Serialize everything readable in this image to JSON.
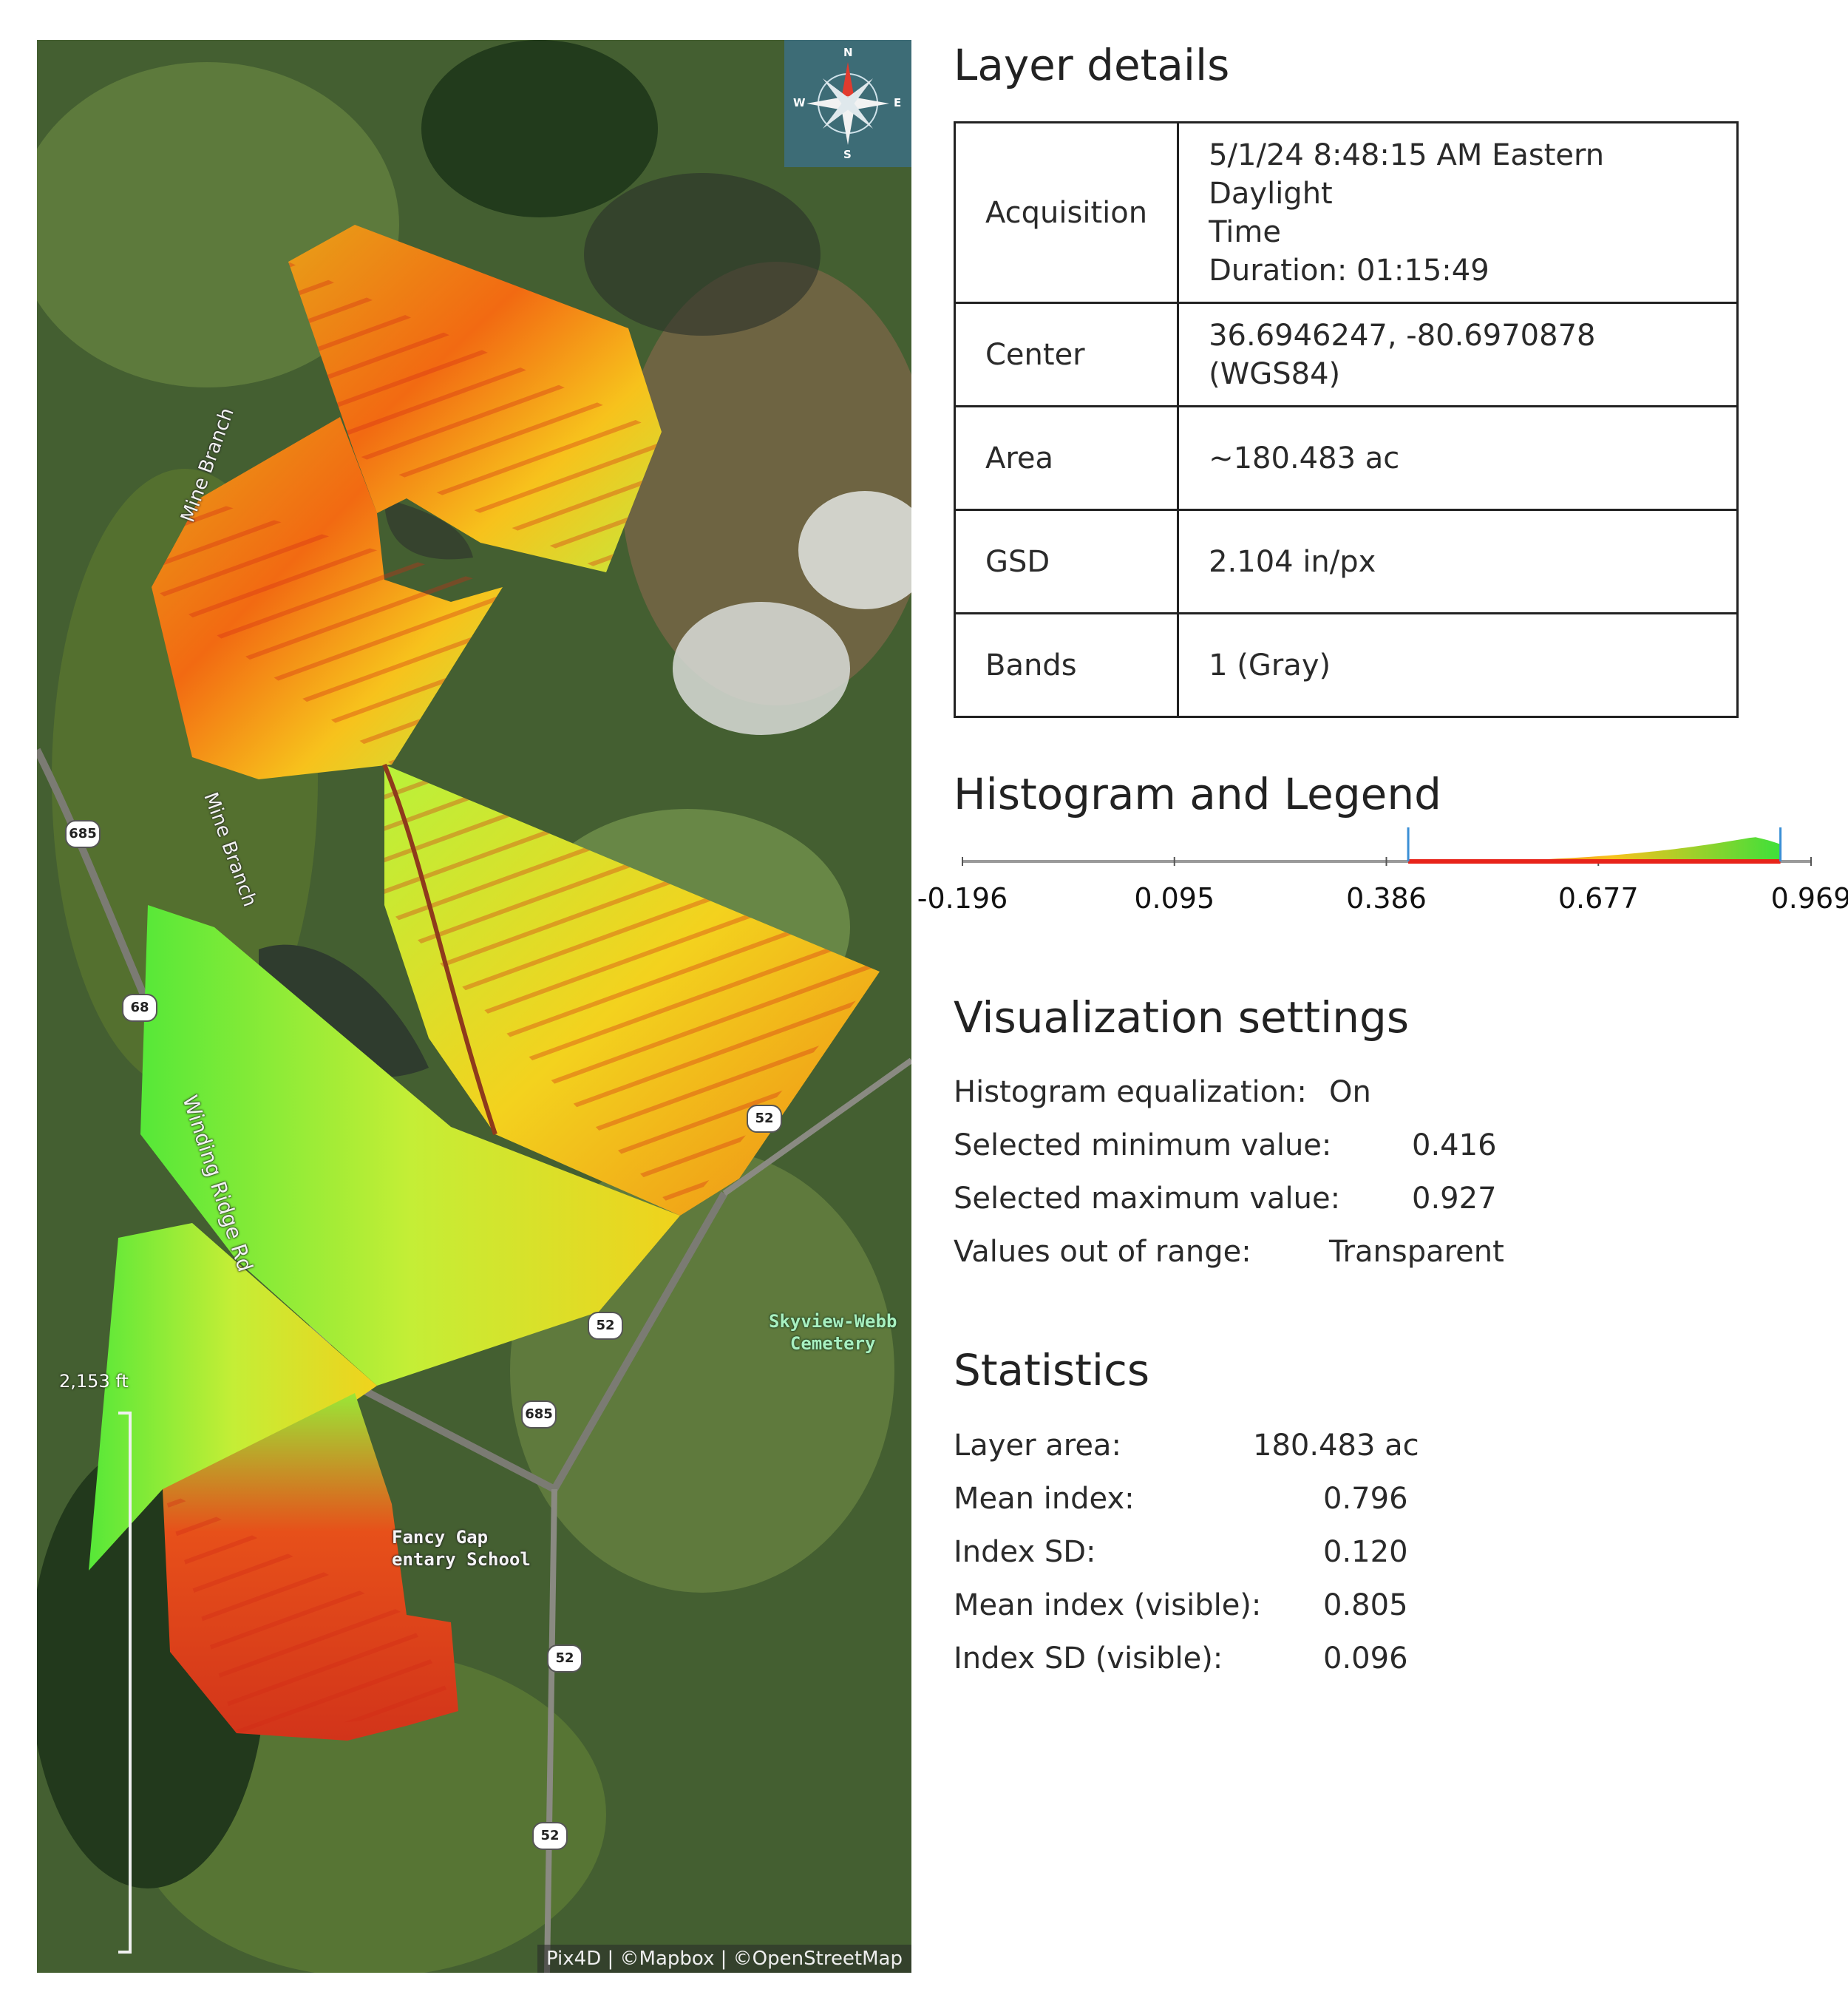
{
  "map": {
    "compass": {
      "n": "N",
      "e": "E",
      "s": "S",
      "w": "W"
    },
    "labels": {
      "mine_branch_1": "Mine Branch",
      "mine_branch_2": "Mine Branch",
      "winding_ridge": "Winding Ridge Rd",
      "skyview": "Skyview-Webb\nCemetery",
      "school": "Fancy Gap\nentary School"
    },
    "shields": {
      "r685a": "685",
      "r68": "68",
      "r52a": "52",
      "r52b": "52",
      "r685b": "685",
      "r52c": "52",
      "r52d": "52"
    },
    "scale_label": "2,153 ft",
    "attribution": "Pix4D | ©Mapbox | ©OpenStreetMap"
  },
  "layer_details": {
    "title": "Layer details",
    "rows": [
      {
        "key": "Acquisition",
        "value": "5/1/24 8:48:15 AM Eastern Daylight\nTime\nDuration: 01:15:49"
      },
      {
        "key": "Center",
        "value": "36.6946247, -80.6970878 (WGS84)"
      },
      {
        "key": "Area",
        "value": "~180.483 ac"
      },
      {
        "key": "GSD",
        "value": "2.104 in/px"
      },
      {
        "key": "Bands",
        "value": "1 (Gray)"
      }
    ]
  },
  "histogram": {
    "title": "Histogram and Legend",
    "ticks": [
      "-0.196",
      "0.095",
      "0.386",
      "0.677",
      "0.969"
    ],
    "range": [
      -0.196,
      0.969
    ],
    "selected_min": 0.416,
    "selected_max": 0.927,
    "colors": {
      "low": "#e8241a",
      "mid": "#f7c21c",
      "high": "#3ee03a",
      "marker": "#3b8fd6"
    }
  },
  "visualization": {
    "title": "Visualization settings",
    "rows": [
      {
        "key": "Histogram equalization:",
        "value": "On"
      },
      {
        "key": "Selected minimum value:",
        "value": "0.416"
      },
      {
        "key": "Selected maximum value:",
        "value": "0.927"
      },
      {
        "key": "Values out of range:",
        "value": "Transparent"
      }
    ]
  },
  "statistics": {
    "title": "Statistics",
    "rows": [
      {
        "key": "Layer area:",
        "value": "180.483 ac"
      },
      {
        "key": "Mean index:",
        "value": "0.796"
      },
      {
        "key": "Index SD:",
        "value": "0.120"
      },
      {
        "key": "Mean index (visible):",
        "value": "0.805"
      },
      {
        "key": "Index SD (visible):",
        "value": "0.096"
      }
    ]
  }
}
